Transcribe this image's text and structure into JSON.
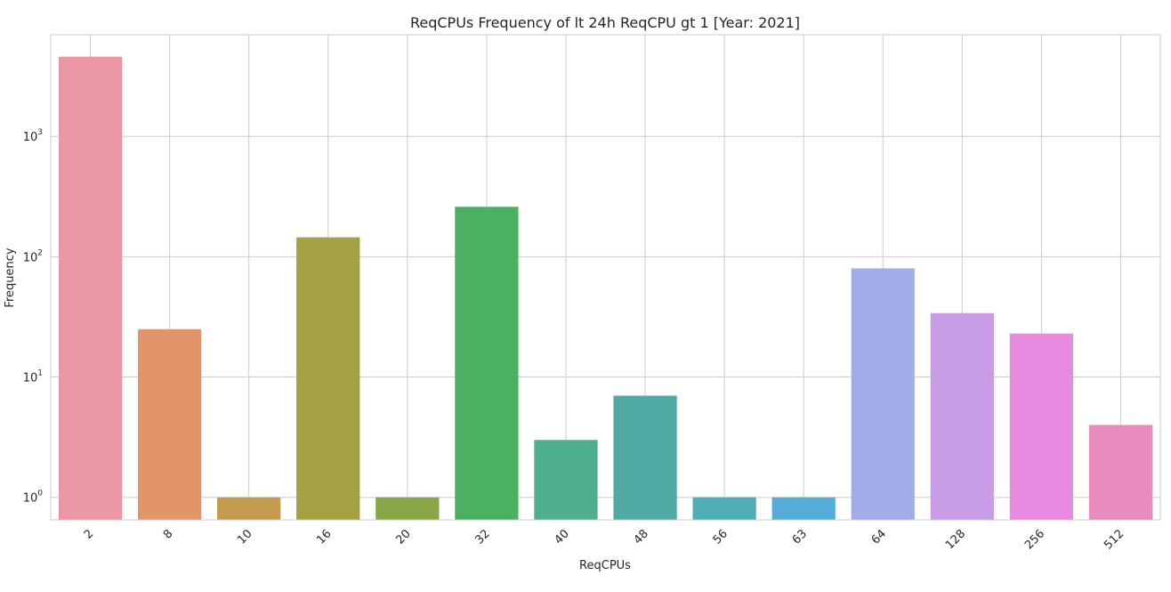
{
  "chart_data": {
    "type": "bar",
    "title": "ReqCPUs Frequency of lt 24h ReqCPU gt 1 [Year: 2021]",
    "xlabel": "ReqCPUs",
    "ylabel": "Frequency",
    "yscale": "log",
    "ylim": [
      0.65,
      7000
    ],
    "yticks": [
      {
        "value": 1,
        "base": "10",
        "exp": "0"
      },
      {
        "value": 10,
        "base": "10",
        "exp": "1"
      },
      {
        "value": 100,
        "base": "10",
        "exp": "2"
      },
      {
        "value": 1000,
        "base": "10",
        "exp": "3"
      }
    ],
    "grid": true,
    "categories": [
      "2",
      "8",
      "10",
      "16",
      "20",
      "32",
      "40",
      "48",
      "56",
      "63",
      "64",
      "128",
      "256",
      "512"
    ],
    "values": [
      4600,
      25,
      1,
      145,
      1,
      260,
      3,
      7,
      1,
      1,
      80,
      34,
      23,
      4
    ],
    "colors": [
      "#ea96a3",
      "#e3946b",
      "#c59c4f",
      "#a6a045",
      "#89a647",
      "#4bb062",
      "#4daf8b",
      "#4eaaa3",
      "#4daeb8",
      "#56acd9",
      "#a1ade9",
      "#c89de6",
      "#e88ae0",
      "#e88cbd"
    ]
  }
}
